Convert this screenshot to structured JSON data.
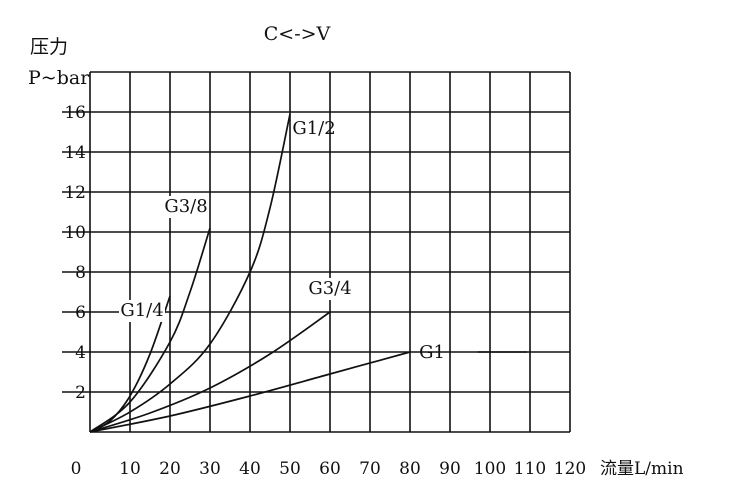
{
  "chart_data": {
    "type": "line",
    "title": "C<->V",
    "ylabel_top": "压力",
    "ylabel": "P~bar",
    "xlabel": "流量L/min",
    "xlim": [
      0,
      120
    ],
    "ylim": [
      0,
      18
    ],
    "grid": true,
    "x_ticks": [
      "0",
      "10",
      "20",
      "30",
      "40",
      "50",
      "60",
      "70",
      "80",
      "90",
      "100",
      "110",
      "120"
    ],
    "y_ticks": [
      "2",
      "4",
      "6",
      "8",
      "10",
      "12",
      "14",
      "16"
    ],
    "series": [
      {
        "name": "G1/4",
        "x": [
          0,
          5,
          10,
          15,
          20
        ],
        "y": [
          0,
          0.55,
          1.8,
          3.9,
          6.8
        ]
      },
      {
        "name": "G3/8",
        "x": [
          0,
          10,
          20,
          25,
          30
        ],
        "y": [
          0,
          1.5,
          4.5,
          7.0,
          10.2
        ]
      },
      {
        "name": "G1/2",
        "x": [
          0,
          10,
          20,
          30,
          40,
          45,
          50
        ],
        "y": [
          0,
          1.0,
          2.4,
          4.4,
          8.0,
          11.2,
          15.9
        ]
      },
      {
        "name": "G3/4",
        "x": [
          0,
          15,
          30,
          45,
          60
        ],
        "y": [
          0,
          0.95,
          2.2,
          3.9,
          6.0
        ]
      },
      {
        "name": "G1",
        "x": [
          0,
          20,
          40,
          60,
          80
        ],
        "y": [
          0,
          0.8,
          1.8,
          2.9,
          4.0
        ]
      }
    ]
  }
}
